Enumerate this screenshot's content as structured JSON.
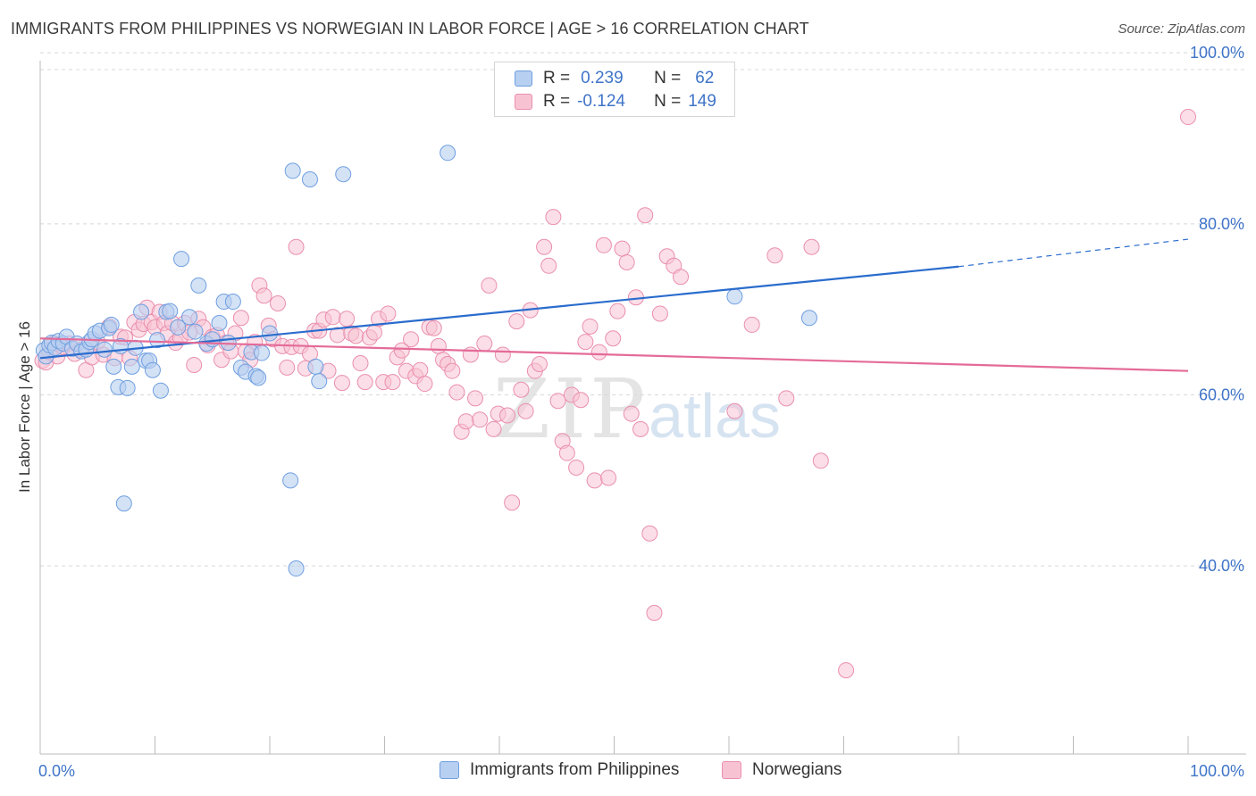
{
  "title": "IMMIGRANTS FROM PHILIPPINES VS NORWEGIAN IN LABOR FORCE | AGE > 16 CORRELATION CHART",
  "source": "Source: ZipAtlas.com",
  "watermark": {
    "zip": "ZIP",
    "atlas": "atlas"
  },
  "legend": {
    "series1": {
      "r_label": "R =",
      "r_value": "0.239",
      "n_label": "N =",
      "n_value": "62"
    },
    "series2": {
      "r_label": "R =",
      "r_value": "-0.124",
      "n_label": "N =",
      "n_value": "149"
    }
  },
  "bottom_legend": {
    "series1": "Immigrants from Philippines",
    "series2": "Norwegians"
  },
  "colors": {
    "blue_fill": "#b7cff0",
    "blue_stroke": "#6f9fe0",
    "blue_line": "#2a6ccd",
    "pink_fill": "#f7c3d3",
    "pink_stroke": "#ea8fae",
    "pink_line": "#e46b98",
    "axis_label": "#3f74c8",
    "grid": "#d8d8d8"
  },
  "chart_data": {
    "type": "scatter",
    "title": "IMMIGRANTS FROM PHILIPPINES VS NORWEGIAN IN LABOR FORCE | AGE > 16 CORRELATION CHART",
    "xlabel": "",
    "ylabel": "In Labor Force | Age > 16",
    "xlim": [
      0,
      100
    ],
    "ylim": [
      18,
      102
    ],
    "x_tick_labels": [
      "0.0%",
      "100.0%"
    ],
    "y_tick_labels": [
      "40.0%",
      "60.0%",
      "80.0%",
      "100.0%"
    ],
    "y_ticks": [
      40,
      60,
      80,
      100
    ],
    "grid": "horizontal dashed",
    "legend": "top-center",
    "series": [
      {
        "name": "Immigrants from Philippines",
        "color": "blue",
        "r": 0.239,
        "n": 62,
        "trend": {
          "x0": 0,
          "y0": 64.3,
          "x1": 80,
          "y1": 75.0,
          "dash_to_x": 100,
          "dash_to_y": 78.2
        },
        "points": [
          [
            0.3,
            65.2
          ],
          [
            0.5,
            64.5
          ],
          [
            0.8,
            65.8
          ],
          [
            1.0,
            66.1
          ],
          [
            1.3,
            65.5
          ],
          [
            1.6,
            66.3
          ],
          [
            2.0,
            66.0
          ],
          [
            2.3,
            66.8
          ],
          [
            2.8,
            65.4
          ],
          [
            3.2,
            66.0
          ],
          [
            3.6,
            65.1
          ],
          [
            4.0,
            65.3
          ],
          [
            4.3,
            66.2
          ],
          [
            4.5,
            66.5
          ],
          [
            4.8,
            67.2
          ],
          [
            5.2,
            67.5
          ],
          [
            5.6,
            65.3
          ],
          [
            6.0,
            67.8
          ],
          [
            6.2,
            68.2
          ],
          [
            6.4,
            63.3
          ],
          [
            6.8,
            60.9
          ],
          [
            7.0,
            65.7
          ],
          [
            7.3,
            47.3
          ],
          [
            7.6,
            60.8
          ],
          [
            8.0,
            63.3
          ],
          [
            8.3,
            65.5
          ],
          [
            8.8,
            69.7
          ],
          [
            9.2,
            64.0
          ],
          [
            9.5,
            64.0
          ],
          [
            9.8,
            62.9
          ],
          [
            10.2,
            66.4
          ],
          [
            10.5,
            60.5
          ],
          [
            11.0,
            69.7
          ],
          [
            11.3,
            69.8
          ],
          [
            12.0,
            67.9
          ],
          [
            12.3,
            75.9
          ],
          [
            13.0,
            69.1
          ],
          [
            13.5,
            67.4
          ],
          [
            13.8,
            72.8
          ],
          [
            14.5,
            66.0
          ],
          [
            15.0,
            66.5
          ],
          [
            15.6,
            68.4
          ],
          [
            16.0,
            70.9
          ],
          [
            16.4,
            66.1
          ],
          [
            16.8,
            70.9
          ],
          [
            17.5,
            63.2
          ],
          [
            17.9,
            62.7
          ],
          [
            18.4,
            65.0
          ],
          [
            18.8,
            62.2
          ],
          [
            19.0,
            62.0
          ],
          [
            19.3,
            64.9
          ],
          [
            20.0,
            67.2
          ],
          [
            21.8,
            50.0
          ],
          [
            22.0,
            86.2
          ],
          [
            22.3,
            39.7
          ],
          [
            23.5,
            85.2
          ],
          [
            24.0,
            63.3
          ],
          [
            24.3,
            61.6
          ],
          [
            26.4,
            85.8
          ],
          [
            35.5,
            88.3
          ],
          [
            60.5,
            71.5
          ],
          [
            67.0,
            69.0
          ]
        ]
      },
      {
        "name": "Norwegians",
        "color": "pink",
        "r": -0.124,
        "n": 149,
        "trend": {
          "x0": 0,
          "y0": 66.6,
          "x1": 100,
          "y1": 62.8
        },
        "points": [
          [
            0.2,
            64.0
          ],
          [
            0.5,
            63.8
          ],
          [
            0.8,
            65.0
          ],
          [
            1.2,
            66.0
          ],
          [
            1.5,
            64.5
          ],
          [
            2.0,
            65.6
          ],
          [
            2.5,
            66.0
          ],
          [
            3.0,
            64.8
          ],
          [
            3.5,
            65.3
          ],
          [
            4.0,
            62.9
          ],
          [
            4.5,
            64.4
          ],
          [
            5.0,
            66.2
          ],
          [
            5.5,
            64.7
          ],
          [
            6.0,
            68.0
          ],
          [
            6.5,
            64.3
          ],
          [
            7.0,
            66.8
          ],
          [
            7.4,
            66.7
          ],
          [
            7.8,
            64.3
          ],
          [
            8.2,
            68.5
          ],
          [
            8.6,
            67.6
          ],
          [
            9.0,
            68.3
          ],
          [
            9.3,
            70.2
          ],
          [
            9.7,
            68.5
          ],
          [
            10.0,
            67.9
          ],
          [
            10.4,
            69.7
          ],
          [
            10.8,
            68.4
          ],
          [
            11.1,
            67.2
          ],
          [
            11.5,
            68.4
          ],
          [
            11.8,
            66.1
          ],
          [
            12.2,
            66.7
          ],
          [
            12.6,
            68.4
          ],
          [
            13.0,
            67.3
          ],
          [
            13.4,
            63.5
          ],
          [
            13.8,
            68.9
          ],
          [
            14.2,
            67.9
          ],
          [
            14.6,
            65.8
          ],
          [
            15.0,
            66.8
          ],
          [
            15.4,
            67.0
          ],
          [
            15.8,
            64.1
          ],
          [
            16.2,
            66.1
          ],
          [
            16.6,
            65.1
          ],
          [
            17.0,
            67.2
          ],
          [
            17.5,
            69.0
          ],
          [
            17.9,
            65.1
          ],
          [
            18.3,
            64.1
          ],
          [
            18.7,
            66.2
          ],
          [
            19.1,
            72.8
          ],
          [
            19.5,
            71.6
          ],
          [
            19.9,
            68.1
          ],
          [
            20.3,
            66.5
          ],
          [
            20.7,
            70.7
          ],
          [
            21.1,
            65.7
          ],
          [
            21.5,
            63.2
          ],
          [
            21.9,
            65.6
          ],
          [
            22.3,
            77.3
          ],
          [
            22.7,
            65.7
          ],
          [
            23.1,
            63.1
          ],
          [
            23.5,
            64.8
          ],
          [
            23.9,
            67.5
          ],
          [
            24.3,
            67.5
          ],
          [
            24.7,
            68.8
          ],
          [
            25.1,
            62.8
          ],
          [
            25.5,
            69.1
          ],
          [
            25.9,
            67.0
          ],
          [
            26.3,
            61.4
          ],
          [
            26.7,
            68.9
          ],
          [
            27.1,
            67.2
          ],
          [
            27.5,
            66.9
          ],
          [
            27.9,
            63.7
          ],
          [
            28.3,
            61.5
          ],
          [
            28.7,
            66.7
          ],
          [
            29.1,
            67.3
          ],
          [
            29.5,
            68.9
          ],
          [
            29.9,
            61.5
          ],
          [
            30.3,
            69.5
          ],
          [
            30.7,
            61.5
          ],
          [
            31.1,
            64.4
          ],
          [
            31.5,
            65.2
          ],
          [
            31.9,
            62.8
          ],
          [
            32.3,
            66.5
          ],
          [
            32.7,
            62.2
          ],
          [
            33.1,
            62.9
          ],
          [
            33.5,
            61.3
          ],
          [
            33.9,
            67.9
          ],
          [
            34.3,
            67.8
          ],
          [
            34.7,
            65.7
          ],
          [
            35.1,
            64.1
          ],
          [
            35.5,
            63.6
          ],
          [
            35.9,
            62.8
          ],
          [
            36.3,
            60.3
          ],
          [
            36.7,
            55.7
          ],
          [
            37.1,
            56.9
          ],
          [
            37.5,
            64.7
          ],
          [
            37.9,
            59.6
          ],
          [
            38.3,
            57.1
          ],
          [
            38.7,
            66.0
          ],
          [
            39.1,
            72.8
          ],
          [
            39.5,
            56.0
          ],
          [
            39.9,
            57.8
          ],
          [
            40.3,
            64.7
          ],
          [
            40.7,
            57.6
          ],
          [
            41.1,
            47.4
          ],
          [
            41.5,
            68.6
          ],
          [
            41.9,
            60.6
          ],
          [
            42.3,
            58.1
          ],
          [
            42.7,
            69.9
          ],
          [
            43.1,
            62.8
          ],
          [
            43.5,
            63.6
          ],
          [
            43.9,
            77.3
          ],
          [
            44.3,
            75.1
          ],
          [
            44.7,
            80.8
          ],
          [
            45.1,
            59.3
          ],
          [
            45.5,
            54.6
          ],
          [
            45.9,
            53.2
          ],
          [
            46.3,
            60.0
          ],
          [
            46.7,
            51.5
          ],
          [
            47.1,
            59.4
          ],
          [
            47.5,
            66.2
          ],
          [
            47.9,
            68.0
          ],
          [
            48.3,
            50.0
          ],
          [
            48.7,
            65.0
          ],
          [
            49.1,
            77.5
          ],
          [
            49.5,
            50.3
          ],
          [
            49.9,
            66.6
          ],
          [
            50.3,
            69.8
          ],
          [
            50.7,
            77.1
          ],
          [
            51.1,
            75.5
          ],
          [
            51.5,
            57.8
          ],
          [
            51.9,
            71.4
          ],
          [
            52.3,
            56.0
          ],
          [
            52.7,
            81.0
          ],
          [
            53.1,
            43.8
          ],
          [
            53.5,
            34.5
          ],
          [
            54.0,
            69.5
          ],
          [
            54.6,
            76.2
          ],
          [
            55.2,
            75.1
          ],
          [
            55.8,
            73.8
          ],
          [
            60.5,
            58.1
          ],
          [
            62.0,
            68.2
          ],
          [
            64.0,
            76.3
          ],
          [
            65.0,
            59.6
          ],
          [
            67.2,
            77.3
          ],
          [
            68.0,
            52.3
          ],
          [
            70.2,
            27.8
          ],
          [
            100.0,
            92.5
          ]
        ]
      }
    ]
  }
}
